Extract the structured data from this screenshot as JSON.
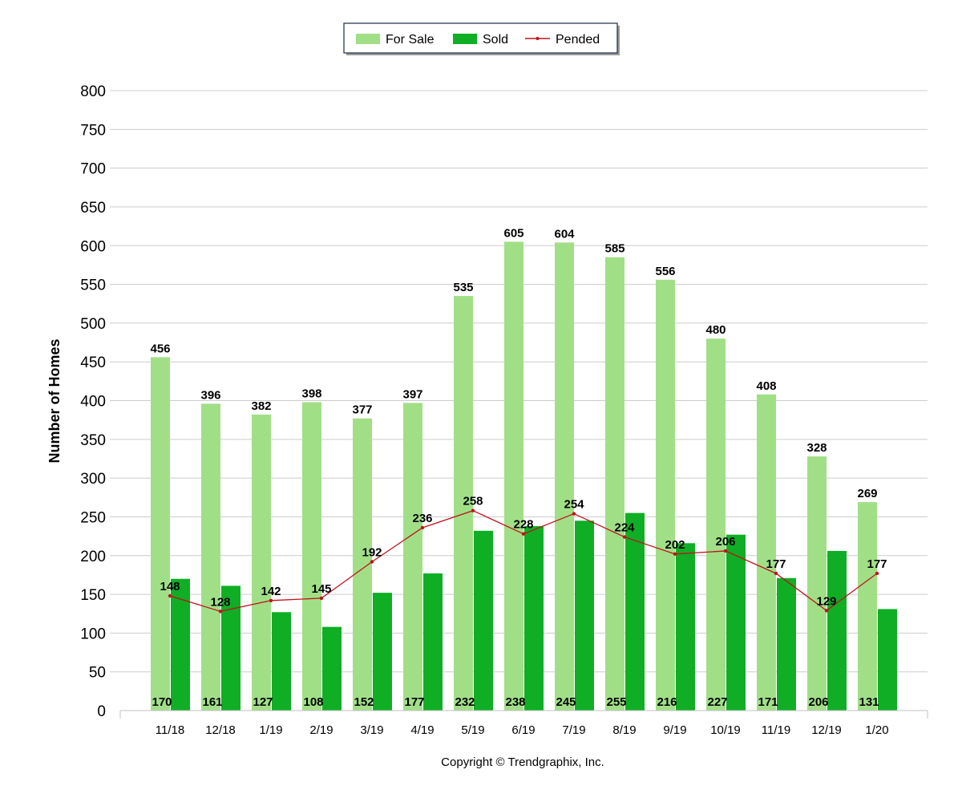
{
  "chart_data": {
    "type": "bar",
    "title": "",
    "xlabel": "",
    "ylabel": "Number of Homes",
    "ylim": [
      0,
      800
    ],
    "yticks": [
      0,
      50,
      100,
      150,
      200,
      250,
      300,
      350,
      400,
      450,
      500,
      550,
      600,
      650,
      700,
      750,
      800
    ],
    "grid": true,
    "legend_position": "top-center",
    "categories": [
      "11/18",
      "12/18",
      "1/19",
      "2/19",
      "3/19",
      "4/19",
      "5/19",
      "6/19",
      "7/19",
      "8/19",
      "9/19",
      "10/19",
      "11/19",
      "12/19",
      "1/20"
    ],
    "series": [
      {
        "name": "For Sale",
        "type": "bar",
        "color": "#a1df87",
        "values": [
          456,
          396,
          382,
          398,
          377,
          397,
          535,
          605,
          604,
          585,
          556,
          480,
          408,
          328,
          269
        ]
      },
      {
        "name": "Sold",
        "type": "bar",
        "color": "#0fae25",
        "values": [
          170,
          161,
          127,
          108,
          152,
          177,
          232,
          238,
          245,
          255,
          216,
          227,
          171,
          206,
          131
        ]
      },
      {
        "name": "Pended",
        "type": "line",
        "color": "#c0121b",
        "values": [
          148,
          128,
          142,
          145,
          192,
          236,
          258,
          228,
          254,
          224,
          202,
          206,
          177,
          129,
          177
        ]
      }
    ],
    "footer": "Copyright © Trendgraphix, Inc."
  }
}
